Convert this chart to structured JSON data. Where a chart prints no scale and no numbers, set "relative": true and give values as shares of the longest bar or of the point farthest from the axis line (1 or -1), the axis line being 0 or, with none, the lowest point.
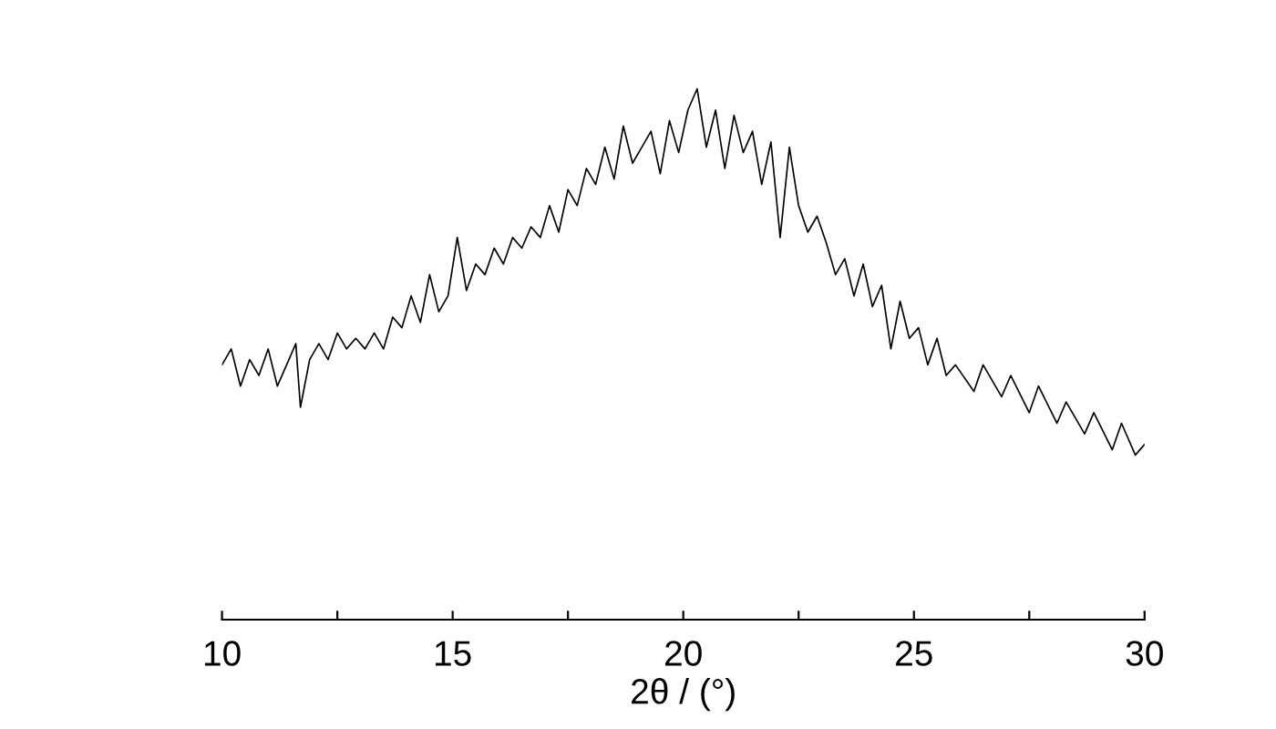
{
  "chart_data": {
    "type": "line",
    "xlabel": "2θ / (°)",
    "relative": true,
    "color": "#000000",
    "line_style": "solid",
    "marker": "none",
    "grid": false,
    "legend": false,
    "xlim": [
      10,
      30
    ],
    "xticks": [
      10,
      {
        "value": 12.5,
        "label": null
      },
      15,
      {
        "value": 17.5,
        "label": null
      },
      20,
      {
        "value": 22.5,
        "label": null
      },
      25,
      {
        "value": 27.5,
        "label": null
      },
      30
    ],
    "x": [
      10.0,
      10.2,
      10.4,
      10.6,
      10.8,
      11.0,
      11.2,
      11.4,
      11.6,
      11.7,
      11.9,
      12.1,
      12.3,
      12.5,
      12.7,
      12.9,
      13.1,
      13.3,
      13.5,
      13.7,
      13.9,
      14.1,
      14.3,
      14.5,
      14.7,
      14.9,
      15.1,
      15.3,
      15.5,
      15.7,
      15.9,
      16.1,
      16.3,
      16.5,
      16.7,
      16.9,
      17.1,
      17.3,
      17.5,
      17.7,
      17.9,
      18.1,
      18.3,
      18.5,
      18.7,
      18.9,
      19.1,
      19.3,
      19.5,
      19.7,
      19.9,
      20.1,
      20.3,
      20.5,
      20.7,
      20.9,
      21.1,
      21.3,
      21.5,
      21.7,
      21.9,
      22.1,
      22.3,
      22.5,
      22.7,
      22.9,
      23.1,
      23.3,
      23.5,
      23.7,
      23.9,
      24.1,
      24.3,
      24.5,
      24.7,
      24.9,
      25.1,
      25.3,
      25.5,
      25.7,
      25.9,
      26.3,
      26.5,
      26.9,
      27.1,
      27.5,
      27.7,
      28.1,
      28.3,
      28.7,
      28.9,
      29.3,
      29.5,
      29.8,
      30.0
    ],
    "values": [
      0.48,
      0.51,
      0.44,
      0.49,
      0.46,
      0.51,
      0.44,
      0.48,
      0.52,
      0.4,
      0.49,
      0.52,
      0.49,
      0.54,
      0.51,
      0.53,
      0.51,
      0.54,
      0.51,
      0.57,
      0.55,
      0.61,
      0.56,
      0.65,
      0.58,
      0.61,
      0.72,
      0.62,
      0.67,
      0.65,
      0.7,
      0.67,
      0.72,
      0.7,
      0.74,
      0.72,
      0.78,
      0.73,
      0.81,
      0.78,
      0.85,
      0.82,
      0.89,
      0.83,
      0.93,
      0.86,
      0.89,
      0.92,
      0.84,
      0.94,
      0.88,
      0.96,
      1,
      0.89,
      0.96,
      0.85,
      0.95,
      0.88,
      0.92,
      0.82,
      0.9,
      0.72,
      0.89,
      0.78,
      0.73,
      0.76,
      0.71,
      0.65,
      0.68,
      0.61,
      0.67,
      0.59,
      0.63,
      0.51,
      0.6,
      0.53,
      0.55,
      0.48,
      0.53,
      0.46,
      0.48,
      0.43,
      0.48,
      0.42,
      0.46,
      0.39,
      0.44,
      0.37,
      0.41,
      0.35,
      0.39,
      0.32,
      0.37,
      0.31,
      0.33
    ]
  }
}
